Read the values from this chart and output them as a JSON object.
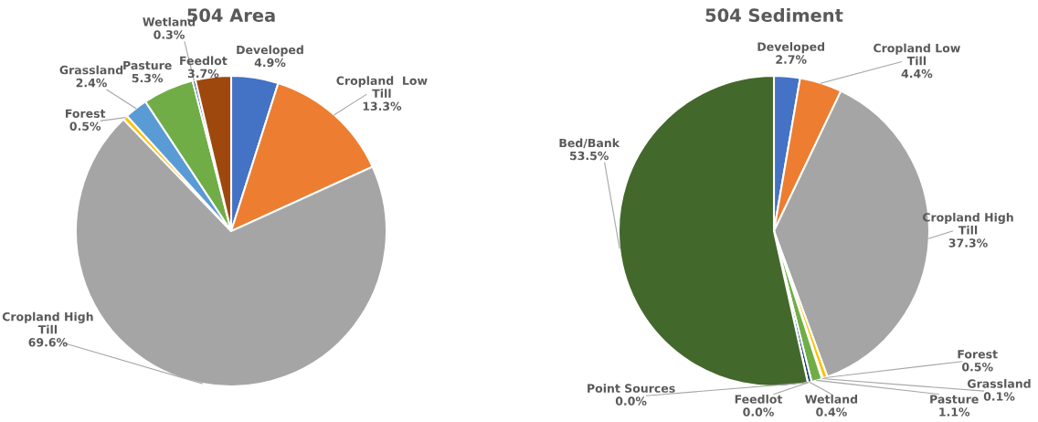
{
  "chart_data": [
    {
      "type": "pie",
      "title": "504 Area",
      "categories": [
        "Developed",
        "Cropland  Low Till",
        "Cropland High Till",
        "Forest",
        "Grassland",
        "Pasture",
        "Wetland",
        "Feedlot"
      ],
      "values": [
        4.9,
        13.3,
        69.6,
        0.5,
        2.4,
        5.3,
        0.3,
        3.7
      ],
      "value_labels": [
        "4.9%",
        "13.3%",
        "69.6%",
        "0.5%",
        "2.4%",
        "5.3%",
        "0.3%",
        "3.7%"
      ],
      "colors": [
        "#4472c4",
        "#ed7d31",
        "#a5a5a5",
        "#ffc000",
        "#5b9bd5",
        "#70ad47",
        "#264478",
        "#9e480e"
      ]
    },
    {
      "type": "pie",
      "title": "504 Sediment",
      "categories": [
        "Developed",
        "Cropland Low Till",
        "Cropland High Till",
        "Forest",
        "Grassland",
        "Pasture",
        "Wetland",
        "Feedlot",
        "Point Sources",
        "Bed/Bank"
      ],
      "values": [
        2.7,
        4.4,
        37.3,
        0.5,
        0.1,
        1.1,
        0.4,
        0.0,
        0.0,
        53.5
      ],
      "value_labels": [
        "2.7%",
        "4.4%",
        "37.3%",
        "0.5%",
        "0.1%",
        "1.1%",
        "0.4%",
        "0.0%",
        "0.0%",
        "53.5%"
      ],
      "colors": [
        "#4472c4",
        "#ed7d31",
        "#a5a5a5",
        "#ffc000",
        "#5b9bd5",
        "#70ad47",
        "#264478",
        "#9e480e",
        "#636363",
        "#43682b"
      ]
    }
  ]
}
